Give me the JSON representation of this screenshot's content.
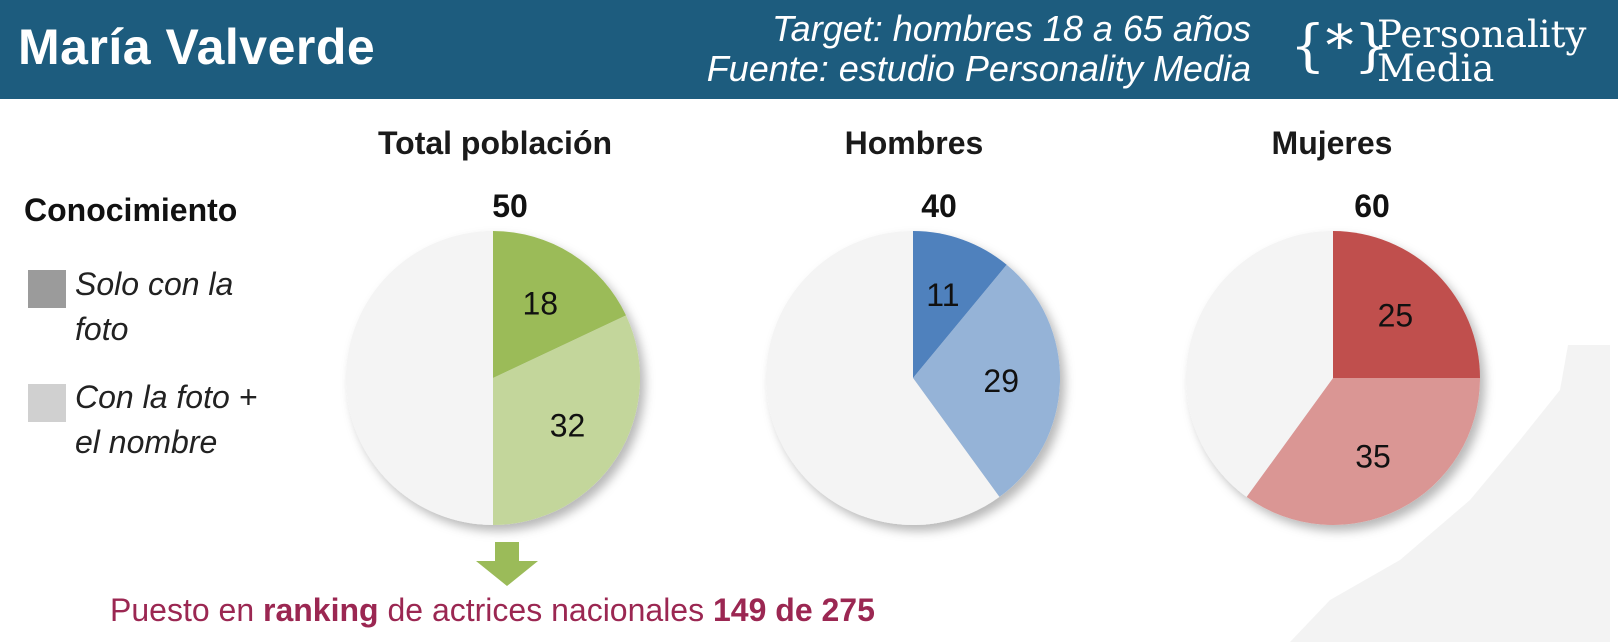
{
  "header": {
    "title": "María Valverde",
    "target": "Target: hombres 18 a 65 años",
    "source": "Fuente: estudio Personality Media",
    "logo_mark": "{*}",
    "logo_line1": "Personality",
    "logo_line2": "Media"
  },
  "legend": {
    "title": "Conocimiento",
    "items": [
      {
        "label_line1": "Solo con la",
        "label_line2": "foto",
        "color": "#9b9b9b"
      },
      {
        "label_line1": "Con la foto +",
        "label_line2": "el nombre",
        "color": "#d0d0d0"
      }
    ]
  },
  "chart_data": [
    {
      "type": "pie",
      "title": "Total población",
      "total": "50",
      "slices": [
        {
          "label": "Solo con la foto",
          "value": 18,
          "color": "#9bbb59"
        },
        {
          "label": "Con la foto + el nombre",
          "value": 32,
          "color": "#c3d69b"
        },
        {
          "label": "",
          "value": 50,
          "color": "#f4f4f4"
        }
      ]
    },
    {
      "type": "pie",
      "title": "Hombres",
      "total": "40",
      "slices": [
        {
          "label": "Solo con la foto",
          "value": 11,
          "color": "#4f81bd"
        },
        {
          "label": "Con la foto + el nombre",
          "value": 29,
          "color": "#95b3d7"
        },
        {
          "label": "",
          "value": 60,
          "color": "#f4f4f4"
        }
      ]
    },
    {
      "type": "pie",
      "title": "Mujeres",
      "total": "60",
      "slices": [
        {
          "label": "Solo con la foto",
          "value": 25,
          "color": "#c0504d"
        },
        {
          "label": "Con la foto + el nombre",
          "value": 35,
          "color": "#da9694"
        },
        {
          "label": "",
          "value": 40,
          "color": "#f4f4f4"
        }
      ]
    }
  ],
  "ranking": {
    "prefix": "Puesto en ",
    "keyword": "ranking",
    "middle": " de actrices nacionales ",
    "value": "149 de 275"
  },
  "colors": {
    "header_bg": "#1d5c7e",
    "ranking_text": "#9b2752",
    "arrow": "#9bbb59"
  }
}
